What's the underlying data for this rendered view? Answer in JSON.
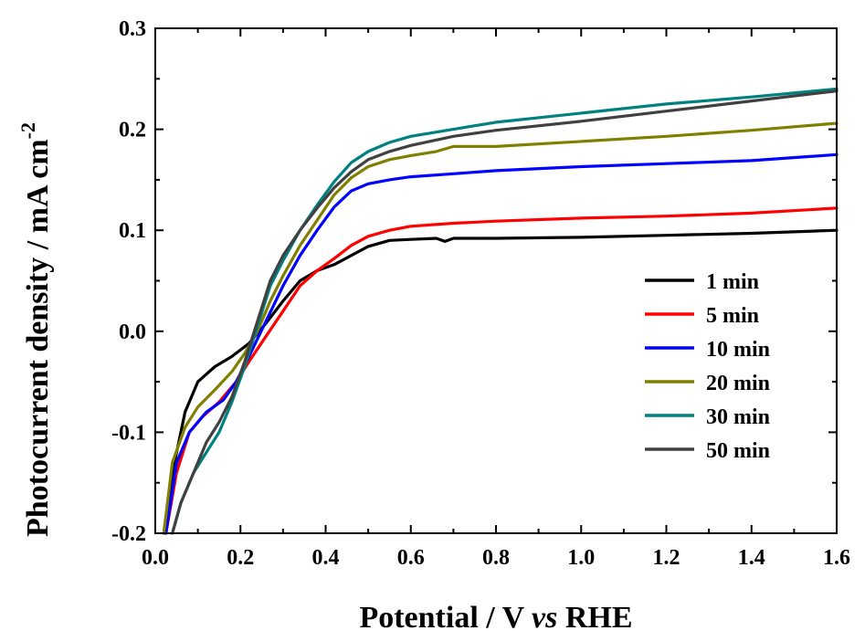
{
  "chart_data": {
    "type": "line",
    "title": "",
    "xlabel": "Potential / V vs RHE",
    "xlabel_parts": [
      "Potential / V ",
      "vs",
      " RHE"
    ],
    "ylabel": "Photocurrent density / mA cm-2",
    "ylabel_parts": [
      "Photocurrent density / mA cm",
      "-2"
    ],
    "xlim": [
      0.0,
      1.6
    ],
    "ylim": [
      -0.2,
      0.3
    ],
    "x_ticks": [
      "0.0",
      "0.2",
      "0.4",
      "0.6",
      "0.8",
      "1.0",
      "1.2",
      "1.4",
      "1.6"
    ],
    "y_ticks": [
      "-0.2",
      "-0.1",
      "0.0",
      "0.1",
      "0.2",
      "0.3"
    ],
    "grid": false,
    "legend_position": "center-right",
    "series": [
      {
        "name": "1 min",
        "color": "#000000",
        "points": [
          [
            0.02,
            -0.2
          ],
          [
            0.04,
            -0.14
          ],
          [
            0.07,
            -0.08
          ],
          [
            0.1,
            -0.05
          ],
          [
            0.14,
            -0.035
          ],
          [
            0.18,
            -0.025
          ],
          [
            0.22,
            -0.012
          ],
          [
            0.26,
            0.008
          ],
          [
            0.3,
            0.03
          ],
          [
            0.34,
            0.05
          ],
          [
            0.38,
            0.06
          ],
          [
            0.42,
            0.066
          ],
          [
            0.46,
            0.075
          ],
          [
            0.5,
            0.084
          ],
          [
            0.55,
            0.09
          ],
          [
            0.6,
            0.091
          ],
          [
            0.66,
            0.092
          ],
          [
            0.68,
            0.089
          ],
          [
            0.7,
            0.092
          ],
          [
            0.8,
            0.092
          ],
          [
            1.0,
            0.093
          ],
          [
            1.2,
            0.095
          ],
          [
            1.4,
            0.097
          ],
          [
            1.6,
            0.1
          ]
        ]
      },
      {
        "name": "5 min",
        "color": "#ff0000",
        "points": [
          [
            0.025,
            -0.2
          ],
          [
            0.05,
            -0.14
          ],
          [
            0.08,
            -0.1
          ],
          [
            0.11,
            -0.085
          ],
          [
            0.15,
            -0.07
          ],
          [
            0.19,
            -0.05
          ],
          [
            0.22,
            -0.03
          ],
          [
            0.26,
            -0.005
          ],
          [
            0.3,
            0.02
          ],
          [
            0.34,
            0.045
          ],
          [
            0.38,
            0.06
          ],
          [
            0.42,
            0.072
          ],
          [
            0.46,
            0.085
          ],
          [
            0.5,
            0.094
          ],
          [
            0.55,
            0.1
          ],
          [
            0.6,
            0.104
          ],
          [
            0.7,
            0.107
          ],
          [
            0.8,
            0.109
          ],
          [
            1.0,
            0.112
          ],
          [
            1.2,
            0.114
          ],
          [
            1.4,
            0.117
          ],
          [
            1.6,
            0.122
          ]
        ]
      },
      {
        "name": "10 min",
        "color": "#0000ff",
        "points": [
          [
            0.025,
            -0.2
          ],
          [
            0.05,
            -0.13
          ],
          [
            0.08,
            -0.1
          ],
          [
            0.12,
            -0.08
          ],
          [
            0.16,
            -0.068
          ],
          [
            0.19,
            -0.05
          ],
          [
            0.22,
            -0.025
          ],
          [
            0.26,
            0.01
          ],
          [
            0.3,
            0.045
          ],
          [
            0.34,
            0.075
          ],
          [
            0.38,
            0.1
          ],
          [
            0.42,
            0.123
          ],
          [
            0.46,
            0.139
          ],
          [
            0.5,
            0.146
          ],
          [
            0.55,
            0.15
          ],
          [
            0.6,
            0.153
          ],
          [
            0.7,
            0.156
          ],
          [
            0.8,
            0.159
          ],
          [
            1.0,
            0.163
          ],
          [
            1.2,
            0.166
          ],
          [
            1.4,
            0.169
          ],
          [
            1.6,
            0.175
          ]
        ]
      },
      {
        "name": "20 min",
        "color": "#808000",
        "points": [
          [
            0.02,
            -0.2
          ],
          [
            0.04,
            -0.13
          ],
          [
            0.07,
            -0.095
          ],
          [
            0.1,
            -0.075
          ],
          [
            0.14,
            -0.058
          ],
          [
            0.18,
            -0.04
          ],
          [
            0.21,
            -0.022
          ],
          [
            0.24,
            0.0
          ],
          [
            0.27,
            0.03
          ],
          [
            0.3,
            0.055
          ],
          [
            0.34,
            0.085
          ],
          [
            0.38,
            0.11
          ],
          [
            0.42,
            0.135
          ],
          [
            0.46,
            0.152
          ],
          [
            0.5,
            0.163
          ],
          [
            0.55,
            0.17
          ],
          [
            0.6,
            0.174
          ],
          [
            0.66,
            0.178
          ],
          [
            0.7,
            0.183
          ],
          [
            0.8,
            0.183
          ],
          [
            1.0,
            0.188
          ],
          [
            1.2,
            0.193
          ],
          [
            1.4,
            0.199
          ],
          [
            1.6,
            0.206
          ]
        ]
      },
      {
        "name": "30 min",
        "color": "#008080",
        "points": [
          [
            0.04,
            -0.2
          ],
          [
            0.06,
            -0.17
          ],
          [
            0.09,
            -0.14
          ],
          [
            0.12,
            -0.12
          ],
          [
            0.15,
            -0.1
          ],
          [
            0.18,
            -0.07
          ],
          [
            0.21,
            -0.035
          ],
          [
            0.24,
            0.005
          ],
          [
            0.27,
            0.045
          ],
          [
            0.3,
            0.07
          ],
          [
            0.34,
            0.1
          ],
          [
            0.38,
            0.125
          ],
          [
            0.42,
            0.148
          ],
          [
            0.46,
            0.167
          ],
          [
            0.5,
            0.178
          ],
          [
            0.55,
            0.187
          ],
          [
            0.6,
            0.193
          ],
          [
            0.7,
            0.2
          ],
          [
            0.8,
            0.207
          ],
          [
            1.0,
            0.216
          ],
          [
            1.2,
            0.225
          ],
          [
            1.4,
            0.232
          ],
          [
            1.6,
            0.24
          ]
        ]
      },
      {
        "name": "50 min",
        "color": "#404040",
        "points": [
          [
            0.04,
            -0.2
          ],
          [
            0.06,
            -0.17
          ],
          [
            0.09,
            -0.14
          ],
          [
            0.12,
            -0.11
          ],
          [
            0.15,
            -0.09
          ],
          [
            0.18,
            -0.065
          ],
          [
            0.21,
            -0.03
          ],
          [
            0.24,
            0.01
          ],
          [
            0.27,
            0.05
          ],
          [
            0.3,
            0.075
          ],
          [
            0.34,
            0.1
          ],
          [
            0.38,
            0.122
          ],
          [
            0.42,
            0.142
          ],
          [
            0.46,
            0.158
          ],
          [
            0.5,
            0.17
          ],
          [
            0.55,
            0.178
          ],
          [
            0.6,
            0.184
          ],
          [
            0.7,
            0.193
          ],
          [
            0.8,
            0.199
          ],
          [
            1.0,
            0.208
          ],
          [
            1.2,
            0.218
          ],
          [
            1.4,
            0.228
          ],
          [
            1.6,
            0.238
          ]
        ]
      }
    ]
  }
}
